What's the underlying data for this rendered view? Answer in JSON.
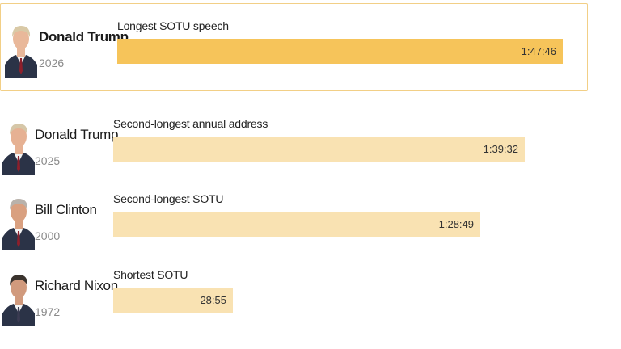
{
  "colors": {
    "highlight_bar": "#f6c45a",
    "bar": "#f9e2b2",
    "highlight_border": "#f2cf86"
  },
  "chart_data": {
    "type": "bar",
    "orientation": "horizontal",
    "unit": "h:mm:ss",
    "entries": [
      {
        "name": "Donald Trump",
        "year": "2026",
        "label": "Longest SOTU speech",
        "display": "1:47:46",
        "seconds": 6466,
        "highlight": true
      },
      {
        "name": "Donald Trump",
        "year": "2025",
        "label": "Second-longest annual address",
        "display": "1:39:32",
        "seconds": 5972,
        "highlight": false
      },
      {
        "name": "Bill Clinton",
        "year": "2000",
        "label": "Second-longest SOTU",
        "display": "1:28:49",
        "seconds": 5329,
        "highlight": false
      },
      {
        "name": "Richard Nixon",
        "year": "1972",
        "label": "Shortest SOTU",
        "display": "28:55",
        "seconds": 1735,
        "highlight": false
      }
    ]
  }
}
